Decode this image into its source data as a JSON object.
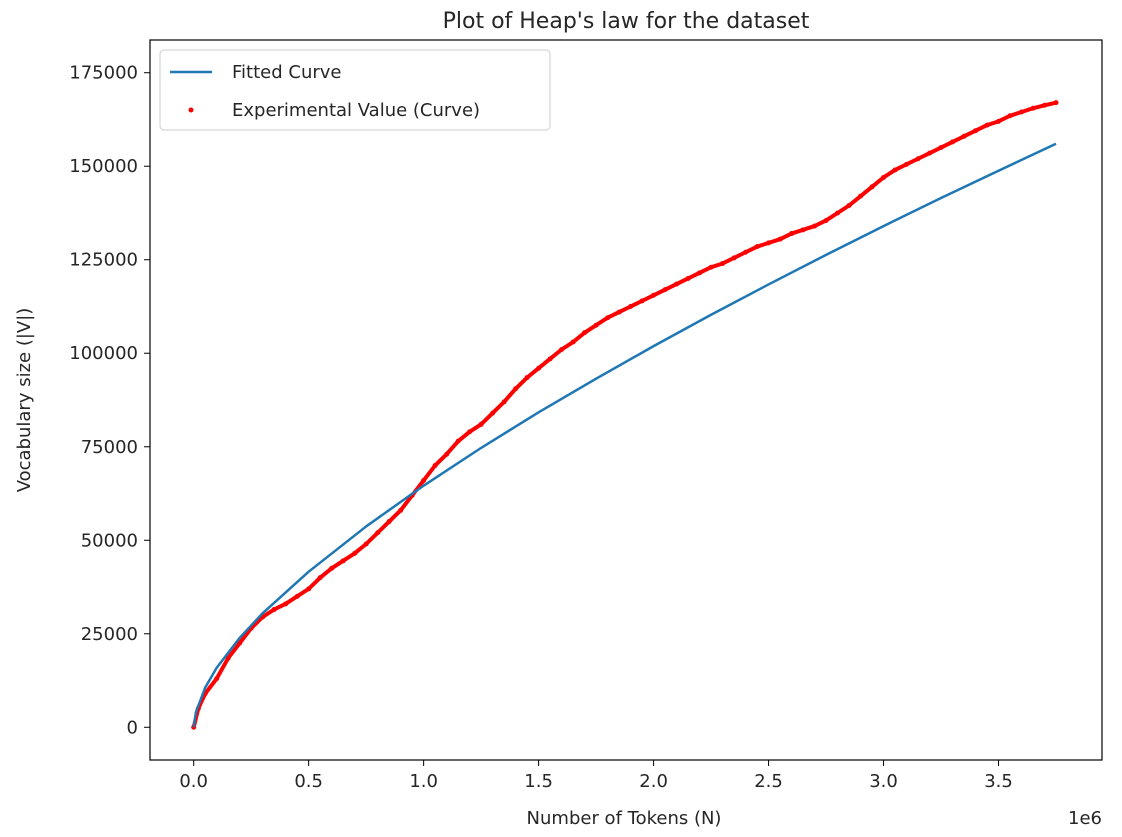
{
  "chart_data": {
    "type": "line",
    "title": "Plot of Heap's law for the dataset",
    "xlabel": "Number of Tokens (N)",
    "ylabel": "Vocabulary size (|V|)",
    "x_offset_label": "1e6",
    "xlim": [
      -0.19,
      3.95
    ],
    "ylim": [
      -8750,
      183750
    ],
    "x_ticks": [
      0.0,
      0.5,
      1.0,
      1.5,
      2.0,
      2.5,
      3.0,
      3.5
    ],
    "x_tick_labels": [
      "0.0",
      "0.5",
      "1.0",
      "1.5",
      "2.0",
      "2.5",
      "3.0",
      "3.5"
    ],
    "y_ticks": [
      0,
      25000,
      50000,
      75000,
      100000,
      125000,
      150000,
      175000
    ],
    "y_tick_labels": [
      "0",
      "25000",
      "50000",
      "75000",
      "100000",
      "125000",
      "150000",
      "175000"
    ],
    "grid": false,
    "legend_position": "top-left",
    "series": [
      {
        "name": "Fitted Curve",
        "kind": "line",
        "color": "#1f77b4",
        "x": [
          0.0,
          0.01,
          0.05,
          0.1,
          0.2,
          0.3,
          0.5,
          0.75,
          1.0,
          1.25,
          1.5,
          1.75,
          2.0,
          2.25,
          2.5,
          2.75,
          3.0,
          3.25,
          3.5,
          3.75
        ],
        "y": [
          0,
          4100,
          10600,
          15900,
          23900,
          30500,
          41600,
          53700,
          64600,
          74700,
          84200,
          93200,
          101900,
          110300,
          118400,
          126300,
          134000,
          141500,
          148800,
          156000
        ]
      },
      {
        "name": "Experimental Value (Curve)",
        "kind": "scatter",
        "color": "#ff0000",
        "x": [
          0.0,
          0.02,
          0.05,
          0.1,
          0.15,
          0.2,
          0.25,
          0.3,
          0.35,
          0.4,
          0.45,
          0.5,
          0.55,
          0.6,
          0.65,
          0.7,
          0.75,
          0.8,
          0.85,
          0.9,
          0.95,
          1.0,
          1.05,
          1.1,
          1.15,
          1.2,
          1.25,
          1.3,
          1.35,
          1.4,
          1.45,
          1.5,
          1.55,
          1.6,
          1.65,
          1.7,
          1.75,
          1.8,
          1.85,
          1.9,
          1.95,
          2.0,
          2.05,
          2.1,
          2.15,
          2.2,
          2.25,
          2.3,
          2.35,
          2.4,
          2.45,
          2.5,
          2.55,
          2.6,
          2.65,
          2.7,
          2.75,
          2.8,
          2.85,
          2.9,
          2.95,
          3.0,
          3.05,
          3.1,
          3.15,
          3.2,
          3.25,
          3.3,
          3.35,
          3.4,
          3.45,
          3.5,
          3.55,
          3.6,
          3.65,
          3.7,
          3.75
        ],
        "y": [
          0,
          5000,
          9000,
          13000,
          18500,
          22500,
          26500,
          29500,
          31500,
          33000,
          35000,
          37000,
          40000,
          42500,
          44500,
          46500,
          49000,
          52000,
          55000,
          58000,
          62000,
          66000,
          70000,
          73000,
          76500,
          79000,
          81000,
          84000,
          87000,
          90500,
          93500,
          96000,
          98500,
          101000,
          103000,
          105500,
          107500,
          109500,
          111000,
          112500,
          114000,
          115500,
          117000,
          118500,
          120000,
          121500,
          123000,
          124000,
          125500,
          127000,
          128500,
          129500,
          130500,
          132000,
          133000,
          134000,
          135500,
          137500,
          139500,
          142000,
          144500,
          147000,
          149000,
          150500,
          152000,
          153500,
          155000,
          156500,
          158000,
          159500,
          161000,
          162000,
          163500,
          164500,
          165500,
          166300,
          167000
        ]
      }
    ]
  }
}
